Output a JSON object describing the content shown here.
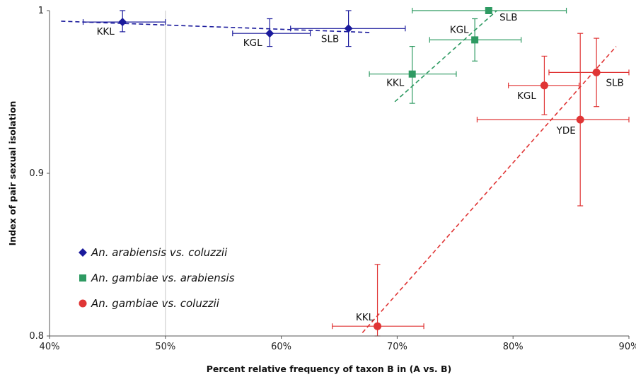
{
  "chart_data": {
    "type": "scatter",
    "title": "",
    "xlabel": "Percent relative frequency of taxon B in (A vs. B)",
    "ylabel": "Index of pair sexual isolation",
    "xlim": [
      40,
      90
    ],
    "ylim": [
      0.8,
      1.0
    ],
    "x_ticks": [
      "40%",
      "50%",
      "60%",
      "70%",
      "80%",
      "90%"
    ],
    "y_ticks": [
      "0.8",
      "0.9",
      "1"
    ],
    "grid": "single vertical reference line at 50%",
    "legend_position": "lower-left",
    "series": [
      {
        "name": "An. arabiensis vs. coluzzii",
        "color": "#1a1a9c",
        "marker": "diamond",
        "points": [
          {
            "label": "KKL",
            "x": 46.3,
            "y": 0.993,
            "xerr": [
              42.9,
              50.0
            ],
            "yerr": [
              0.987,
              1.0
            ]
          },
          {
            "label": "KGL",
            "x": 59.0,
            "y": 0.986,
            "xerr": [
              55.8,
              62.5
            ],
            "yerr": [
              0.978,
              0.995
            ]
          },
          {
            "label": "SLB",
            "x": 65.8,
            "y": 0.989,
            "xerr": [
              60.8,
              70.7
            ],
            "yerr": [
              0.978,
              1.0
            ]
          }
        ],
        "trend": {
          "x": [
            41,
            67.8
          ],
          "y": [
            0.9935,
            0.9865
          ]
        }
      },
      {
        "name": "An. gambiae vs. arabiensis",
        "color": "#2e9a62",
        "marker": "square",
        "points": [
          {
            "label": "KKL",
            "x": 71.3,
            "y": 0.961,
            "xerr": [
              67.6,
              75.1
            ],
            "yerr": [
              0.943,
              0.978
            ]
          },
          {
            "label": "KGL",
            "x": 76.7,
            "y": 0.982,
            "xerr": [
              72.8,
              80.7
            ],
            "yerr": [
              0.969,
              0.995
            ]
          },
          {
            "label": "SLB",
            "x": 77.9,
            "y": 1.0,
            "xerr": [
              71.3,
              84.6
            ],
            "yerr": [
              1.0,
              1.0
            ]
          }
        ],
        "trend": {
          "x": [
            69.8,
            78.6
          ],
          "y": [
            0.944,
            1.0
          ]
        }
      },
      {
        "name": "An. gambiae vs. coluzzii",
        "color": "#e03535",
        "marker": "circle",
        "points": [
          {
            "label": "KKL",
            "x": 68.3,
            "y": 0.806,
            "xerr": [
              64.4,
              72.3
            ],
            "yerr": [
              0.8,
              0.844
            ]
          },
          {
            "label": "KGL",
            "x": 82.7,
            "y": 0.954,
            "xerr": [
              79.6,
              85.7
            ],
            "yerr": [
              0.936,
              0.972
            ]
          },
          {
            "label": "YDE",
            "x": 85.8,
            "y": 0.933,
            "xerr": [
              76.9,
              90.0
            ],
            "yerr": [
              0.88,
              0.986
            ]
          },
          {
            "label": "SLB",
            "x": 87.2,
            "y": 0.962,
            "xerr": [
              83.1,
              90.0
            ],
            "yerr": [
              0.941,
              0.983
            ]
          }
        ],
        "trend": {
          "x": [
            67.0,
            88.9
          ],
          "y": [
            0.802,
            0.978
          ]
        }
      }
    ]
  }
}
